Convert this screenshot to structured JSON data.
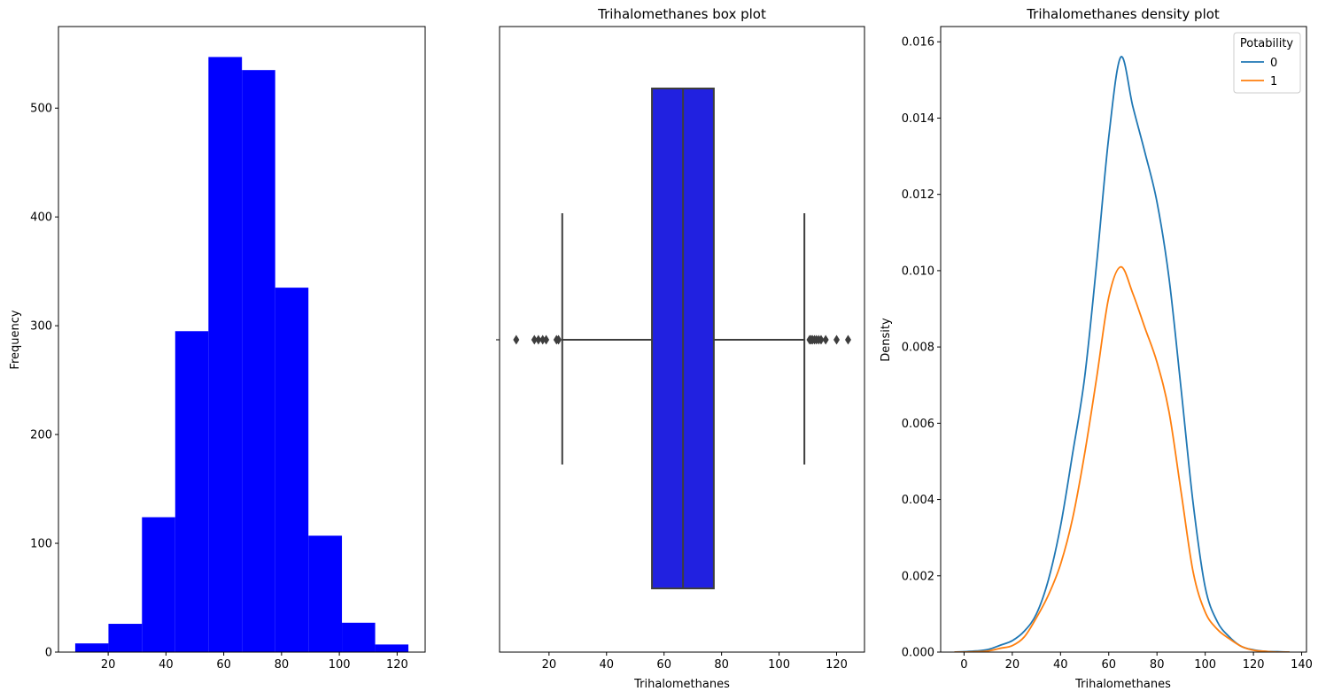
{
  "chart_data": [
    {
      "type": "bar",
      "title": "",
      "xlabel": "",
      "ylabel": "Frequency",
      "bar_color": "#0000ff",
      "bin_edges": [
        8.6,
        20.1,
        31.7,
        43.2,
        54.7,
        66.3,
        77.8,
        89.3,
        100.9,
        112.4,
        123.9
      ],
      "values": [
        8,
        26,
        124,
        295,
        547,
        535,
        335,
        107,
        27,
        7
      ],
      "xlim": [
        2.8,
        129.7
      ],
      "ylim": [
        0,
        575
      ],
      "xticks": [
        20,
        40,
        60,
        80,
        100,
        120
      ],
      "yticks": [
        0,
        100,
        200,
        300,
        400,
        500
      ],
      "grid": false
    },
    {
      "type": "box",
      "title": "Trihalomethanes box plot",
      "xlabel": "Trihalomethanes",
      "ylabel": "",
      "box_color": "#2121e0",
      "line_color": "#3d3d3d",
      "q1": 55.8,
      "median": 66.6,
      "q3": 77.3,
      "whisker_low": 24.6,
      "whisker_high": 108.8,
      "outliers": [
        8.6,
        14.9,
        16.3,
        17.8,
        19.0,
        22.6,
        23.3,
        110.6,
        111.1,
        111.6,
        112.3,
        113.0,
        113.8,
        114.6,
        116.2,
        120.0,
        124.0
      ],
      "xlim": [
        2.8,
        129.7
      ],
      "xticks": [
        20,
        40,
        60,
        80,
        100,
        120
      ],
      "grid": false
    },
    {
      "type": "line",
      "title": "Trihalomethanes density plot",
      "xlabel": "Trihalomethanes",
      "ylabel": "Density",
      "xlim": [
        -9.7,
        142.0
      ],
      "ylim": [
        0,
        0.0164
      ],
      "xticks": [
        0,
        20,
        40,
        60,
        80,
        100,
        120,
        140
      ],
      "yticks": [
        "0.000",
        "0.002",
        "0.004",
        "0.006",
        "0.008",
        "0.010",
        "0.012",
        "0.014",
        "0.016"
      ],
      "legend": {
        "title": "Potability",
        "placement": "top-right"
      },
      "grid": false,
      "series": [
        {
          "name": "0",
          "color": "#1f77b4",
          "points": [
            [
              -4,
              0
            ],
            [
              0,
              1e-05
            ],
            [
              5,
              3e-05
            ],
            [
              10,
              7e-05
            ],
            [
              15,
              0.00018
            ],
            [
              20,
              0.0003
            ],
            [
              25,
              0.00055
            ],
            [
              30,
              0.001
            ],
            [
              35,
              0.0019
            ],
            [
              40,
              0.0033
            ],
            [
              45,
              0.0052
            ],
            [
              50,
              0.0072
            ],
            [
              55,
              0.0102
            ],
            [
              60,
              0.0135
            ],
            [
              65,
              0.0156
            ],
            [
              70,
              0.0143
            ],
            [
              75,
              0.0131
            ],
            [
              80,
              0.0118
            ],
            [
              85,
              0.0098
            ],
            [
              90,
              0.0069
            ],
            [
              95,
              0.0039
            ],
            [
              100,
              0.0017
            ],
            [
              105,
              0.0008
            ],
            [
              110,
              0.0004
            ],
            [
              115,
              0.00015
            ],
            [
              120,
              6e-05
            ],
            [
              125,
              2e-05
            ],
            [
              130,
              1e-05
            ],
            [
              135,
              0
            ]
          ]
        },
        {
          "name": "1",
          "color": "#ff7f0e",
          "points": [
            [
              -4,
              0
            ],
            [
              0,
              0
            ],
            [
              5,
              1e-05
            ],
            [
              10,
              3e-05
            ],
            [
              15,
              0.0001
            ],
            [
              20,
              0.00017
            ],
            [
              25,
              0.0004
            ],
            [
              30,
              0.0009
            ],
            [
              35,
              0.0015
            ],
            [
              40,
              0.0023
            ],
            [
              45,
              0.0035
            ],
            [
              50,
              0.0052
            ],
            [
              55,
              0.0072
            ],
            [
              60,
              0.0093
            ],
            [
              65,
              0.0101
            ],
            [
              70,
              0.0094
            ],
            [
              75,
              0.0085
            ],
            [
              80,
              0.0076
            ],
            [
              85,
              0.0063
            ],
            [
              90,
              0.0042
            ],
            [
              95,
              0.0021
            ],
            [
              100,
              0.00105
            ],
            [
              105,
              0.0006
            ],
            [
              110,
              0.00035
            ],
            [
              115,
              0.00015
            ],
            [
              120,
              5e-05
            ],
            [
              125,
              2e-05
            ],
            [
              130,
              0
            ],
            [
              135,
              0
            ]
          ]
        }
      ]
    }
  ]
}
